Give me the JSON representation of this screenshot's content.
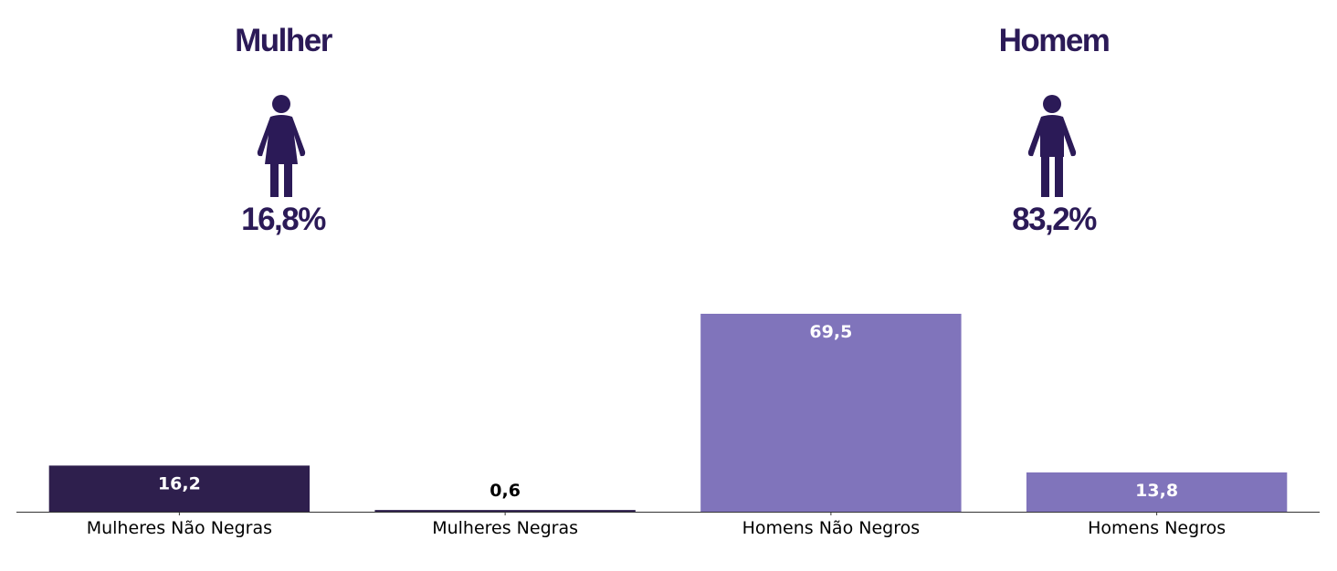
{
  "chart_data": {
    "type": "bar",
    "categories": [
      "Mulheres Não Negras",
      "Mulheres Negras",
      "Homens Não Negros",
      "Homens Negros"
    ],
    "values": [
      16.2,
      0.6,
      69.5,
      13.8
    ],
    "value_labels": [
      "16,2",
      "0,6",
      "69,5",
      "13,8"
    ],
    "colors": [
      "#2e1f4d",
      "#2e1f4d",
      "#8074bb",
      "#8074bb"
    ],
    "groups": [
      {
        "name": "Mulher",
        "value": 16.8,
        "value_label": "16,8%"
      },
      {
        "name": "Homem",
        "value": 83.2,
        "value_label": "83,2%"
      }
    ]
  }
}
